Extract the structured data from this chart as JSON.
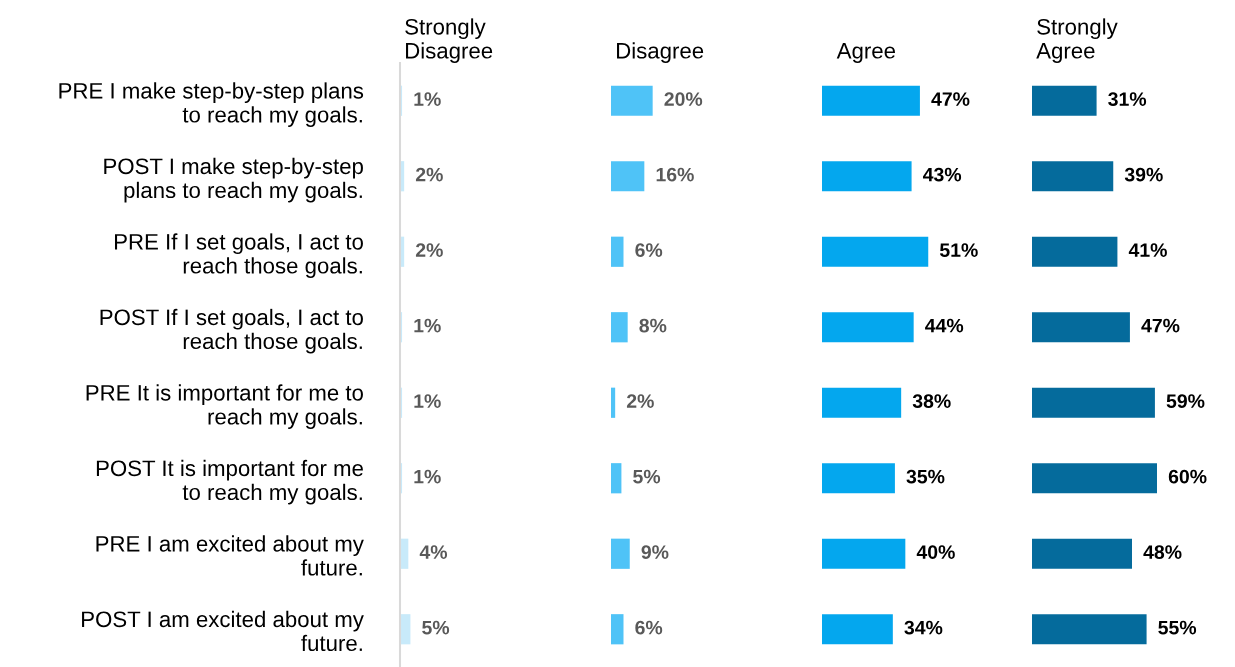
{
  "chart_data": [
    {
      "type": "bar",
      "orientation": "horizontal",
      "title": "Strongly Disagree",
      "categories": [
        "PRE I make step-by-step plans to reach my goals.",
        "POST I make step-by-step plans to reach my goals.",
        "PRE If I set goals, I act to reach those goals.",
        "POST If I set goals, I act to reach those goals.",
        "PRE It is important for me to reach my goals.",
        "POST It is important for me to reach my goals.",
        "PRE I am excited about my future.",
        "POST I am excited about my future."
      ],
      "values": [
        1,
        2,
        2,
        1,
        1,
        1,
        4,
        5
      ],
      "value_labels": [
        "1%",
        "2%",
        "2%",
        "1%",
        "1%",
        "1%",
        "4%",
        "5%"
      ],
      "color": "#c8eafa",
      "tick_labels": "y"
    },
    {
      "type": "bar",
      "orientation": "horizontal",
      "title": "Disagree",
      "categories": [
        null,
        null,
        null,
        null,
        null,
        null,
        null,
        null
      ],
      "values": [
        20,
        16,
        6,
        8,
        2,
        5,
        9,
        6
      ],
      "value_labels": [
        "20%",
        "16%",
        "6%",
        "8%",
        "2%",
        "5%",
        "9%",
        "6%"
      ],
      "color": "#4fc3f7",
      "tick_labels": false
    },
    {
      "type": "bar",
      "orientation": "horizontal",
      "title": "Agree",
      "categories": [
        null,
        null,
        null,
        null,
        null,
        null,
        null,
        null
      ],
      "values": [
        47,
        43,
        51,
        44,
        38,
        35,
        40,
        34
      ],
      "value_labels": [
        "47%",
        "43%",
        "51%",
        "44%",
        "38%",
        "35%",
        "40%",
        "34%"
      ],
      "color": "#04a7ee",
      "tick_labels": false
    },
    {
      "type": "bar",
      "orientation": "horizontal",
      "title": "Strongly Agree",
      "categories": [
        null,
        null,
        null,
        null,
        null,
        null,
        null,
        null
      ],
      "values": [
        31,
        39,
        41,
        47,
        59,
        60,
        48,
        55
      ],
      "value_labels": [
        "31%",
        "39%",
        "41%",
        "47%",
        "59%",
        "60%",
        "48%",
        "55%"
      ],
      "color": "#056b9c",
      "tick_labels": false
    }
  ]
}
